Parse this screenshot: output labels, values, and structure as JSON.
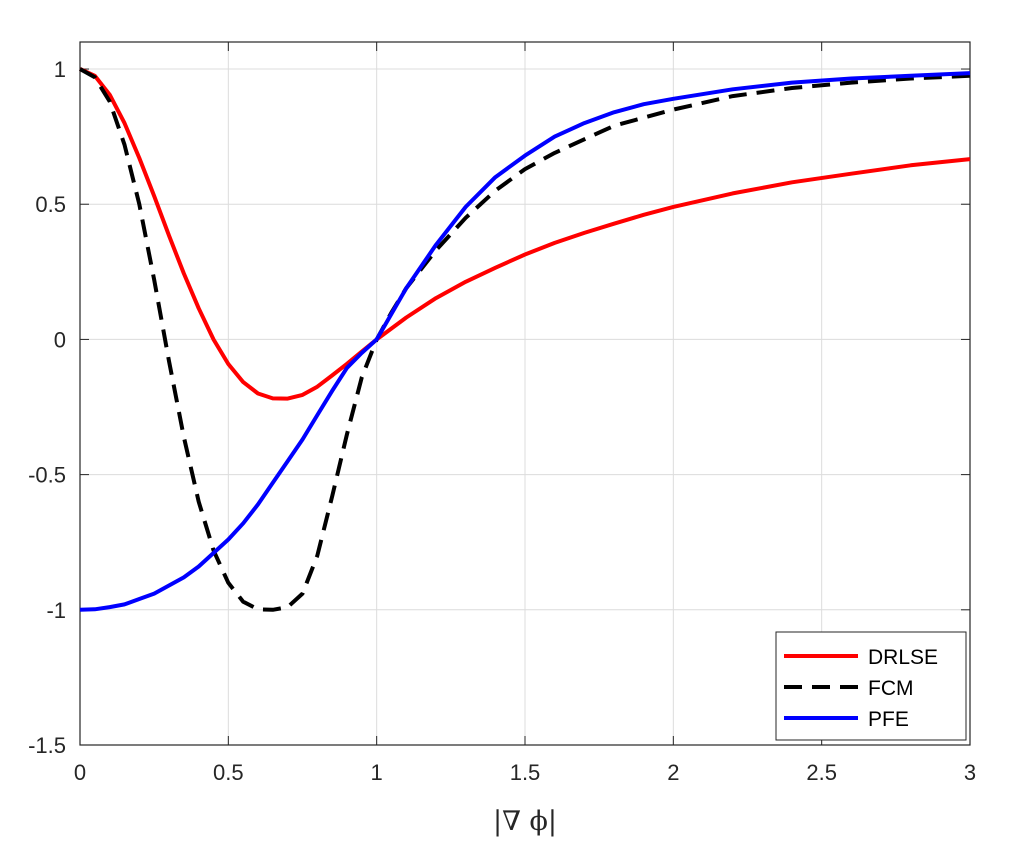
{
  "chart_data": {
    "type": "line",
    "title": "",
    "xlabel": "|∇ ϕ|",
    "ylabel": "",
    "xlim": [
      0,
      3
    ],
    "ylim": [
      -1.5,
      1.1
    ],
    "xticks": [
      0,
      0.5,
      1,
      1.5,
      2,
      2.5,
      3
    ],
    "xtick_labels": [
      "0",
      "0.5",
      "1",
      "1.5",
      "2",
      "2.5",
      "3"
    ],
    "yticks": [
      1,
      0.5,
      0,
      -0.5,
      -1,
      -1.5
    ],
    "ytick_labels": [
      "1",
      "0.5",
      "0",
      "-0.5",
      "-1",
      "-1.5"
    ],
    "grid": true,
    "legend_position": "bottom-right",
    "series": [
      {
        "name": "DRLSE",
        "color": "#ff0000",
        "dash": "solid",
        "x": [
          0,
          0.05,
          0.1,
          0.15,
          0.2,
          0.25,
          0.3,
          0.35,
          0.4,
          0.45,
          0.5,
          0.55,
          0.6,
          0.65,
          0.7,
          0.75,
          0.8,
          0.85,
          0.9,
          0.95,
          1,
          1.1,
          1.2,
          1.3,
          1.4,
          1.5,
          1.6,
          1.7,
          1.8,
          1.9,
          2,
          2.2,
          2.4,
          2.6,
          2.8,
          3
        ],
        "y": [
          1,
          0.975,
          0.905,
          0.8,
          0.671,
          0.53,
          0.384,
          0.244,
          0.115,
          0.0,
          -0.091,
          -0.158,
          -0.2,
          -0.218,
          -0.219,
          -0.205,
          -0.175,
          -0.133,
          -0.09,
          -0.045,
          0,
          0.081,
          0.153,
          0.213,
          0.265,
          0.314,
          0.357,
          0.394,
          0.428,
          0.461,
          0.49,
          0.54,
          0.581,
          0.613,
          0.644,
          0.667
        ]
      },
      {
        "name": "FCM",
        "color": "#000000",
        "dash": "dashed",
        "x": [
          0,
          0.05,
          0.1,
          0.15,
          0.2,
          0.25,
          0.3,
          0.35,
          0.4,
          0.45,
          0.5,
          0.55,
          0.6,
          0.65,
          0.7,
          0.75,
          0.8,
          0.85,
          0.9,
          0.95,
          1,
          1.05,
          1.1,
          1.2,
          1.3,
          1.4,
          1.5,
          1.6,
          1.7,
          1.8,
          1.9,
          2,
          2.2,
          2.4,
          2.6,
          2.8,
          3
        ],
        "y": [
          1,
          0.97,
          0.88,
          0.72,
          0.5,
          0.22,
          -0.08,
          -0.36,
          -0.6,
          -0.78,
          -0.9,
          -0.97,
          -0.998,
          -1.0,
          -0.99,
          -0.94,
          -0.8,
          -0.58,
          -0.35,
          -0.14,
          0,
          0.1,
          0.19,
          0.33,
          0.45,
          0.55,
          0.63,
          0.69,
          0.74,
          0.79,
          0.82,
          0.85,
          0.9,
          0.93,
          0.95,
          0.965,
          0.975
        ]
      },
      {
        "name": "PFE",
        "color": "#0000ff",
        "dash": "solid",
        "x": [
          0,
          0.05,
          0.1,
          0.15,
          0.2,
          0.25,
          0.3,
          0.35,
          0.4,
          0.45,
          0.5,
          0.55,
          0.6,
          0.65,
          0.7,
          0.75,
          0.8,
          0.85,
          0.9,
          0.95,
          1,
          1.1,
          1.2,
          1.3,
          1.4,
          1.5,
          1.6,
          1.7,
          1.8,
          1.9,
          2,
          2.2,
          2.4,
          2.6,
          2.8,
          3
        ],
        "y": [
          -1,
          -0.998,
          -0.99,
          -0.98,
          -0.96,
          -0.94,
          -0.91,
          -0.88,
          -0.84,
          -0.79,
          -0.74,
          -0.68,
          -0.61,
          -0.53,
          -0.45,
          -0.37,
          -0.28,
          -0.19,
          -0.105,
          -0.05,
          0,
          0.19,
          0.35,
          0.49,
          0.6,
          0.68,
          0.75,
          0.8,
          0.84,
          0.87,
          0.89,
          0.925,
          0.95,
          0.965,
          0.975,
          0.985
        ]
      }
    ]
  }
}
